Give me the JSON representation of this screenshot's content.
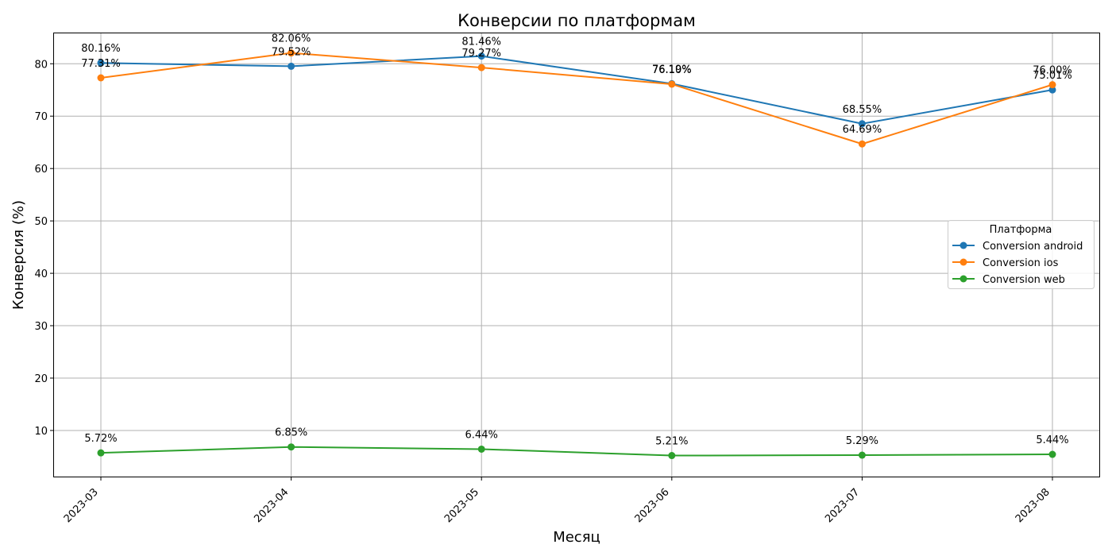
{
  "chart_data": {
    "type": "line",
    "title": "Конверсии по платформам",
    "xlabel": "Месяц",
    "ylabel": "Конверсия (%)",
    "categories": [
      "2023-03",
      "2023-04",
      "2023-05",
      "2023-06",
      "2023-07",
      "2023-08"
    ],
    "ylim": [
      1.2,
      85.8
    ],
    "yticks": [
      10,
      20,
      30,
      40,
      50,
      60,
      70,
      80
    ],
    "grid": true,
    "legend": {
      "title": "Платформа",
      "placement": "center-right"
    },
    "series": [
      {
        "name": "Conversion android",
        "color": "#1f77b4",
        "values": [
          80.16,
          79.52,
          81.46,
          76.19,
          68.55,
          75.01
        ],
        "labels": [
          "80.16%",
          "79.52%",
          "81.46%",
          "76.19%",
          "68.55%",
          "75.01%"
        ]
      },
      {
        "name": "Conversion ios",
        "color": "#ff7f0e",
        "values": [
          77.31,
          82.06,
          79.27,
          76.1,
          64.69,
          76.0
        ],
        "labels": [
          "77.31%",
          "82.06%",
          "79.27%",
          "76.10%",
          "64.69%",
          "76.00%"
        ]
      },
      {
        "name": "Conversion web",
        "color": "#2ca02c",
        "values": [
          5.72,
          6.85,
          6.44,
          5.21,
          5.29,
          5.44
        ],
        "labels": [
          "5.72%",
          "6.85%",
          "6.44%",
          "5.21%",
          "5.29%",
          "5.44%"
        ]
      }
    ]
  }
}
